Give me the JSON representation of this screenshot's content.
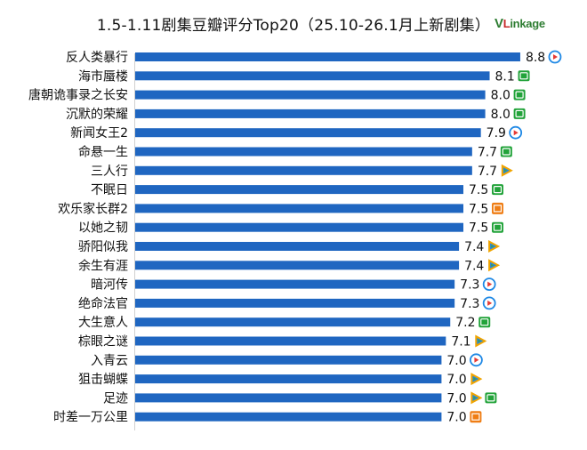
{
  "chart_data": {
    "type": "bar",
    "orientation": "horizontal",
    "title": "1.5-1.11剧集豆瓣评分Top20（25.10-26.1月上新剧集）",
    "categories": [
      "反人类暴行",
      "海市蜃楼",
      "唐朝诡事录之长安",
      "沉默的荣耀",
      "新闻女王2",
      "命悬一生",
      "三人行",
      "不眠日",
      "欢乐家长群2",
      "以她之韧",
      "骄阳似我",
      "余生有涯",
      "暗河传",
      "绝命法官",
      "大生意人",
      "棕眼之谜",
      "入青云",
      "狙击蝴蝶",
      "足迹",
      "时差一万公里"
    ],
    "values": [
      8.8,
      8.1,
      8.0,
      8.0,
      7.9,
      7.7,
      7.7,
      7.5,
      7.5,
      7.5,
      7.4,
      7.4,
      7.3,
      7.3,
      7.2,
      7.1,
      7.0,
      7.0,
      7.0,
      7.0
    ],
    "platforms": [
      [
        "youku"
      ],
      [
        "iqiyi"
      ],
      [
        "iqiyi"
      ],
      [
        "iqiyi"
      ],
      [
        "youku"
      ],
      [
        "iqiyi"
      ],
      [
        "tencent"
      ],
      [
        "iqiyi"
      ],
      [
        "mango"
      ],
      [
        "iqiyi"
      ],
      [
        "tencent"
      ],
      [
        "tencent"
      ],
      [
        "youku"
      ],
      [
        "youku"
      ],
      [
        "iqiyi"
      ],
      [
        "tencent"
      ],
      [
        "youku"
      ],
      [
        "tencent"
      ],
      [
        "tencent",
        "iqiyi"
      ],
      [
        "mango"
      ]
    ],
    "xlim": [
      0,
      8.8
    ],
    "bar_color": "#1f66c1"
  },
  "logo": {
    "v": "V",
    "l": "L",
    "rest": "inkage"
  },
  "platform_colors": {
    "youku": "#1e88e5",
    "iqiyi": "#22a33a",
    "tencent": "#f0a400",
    "mango": "#ef7d14"
  }
}
